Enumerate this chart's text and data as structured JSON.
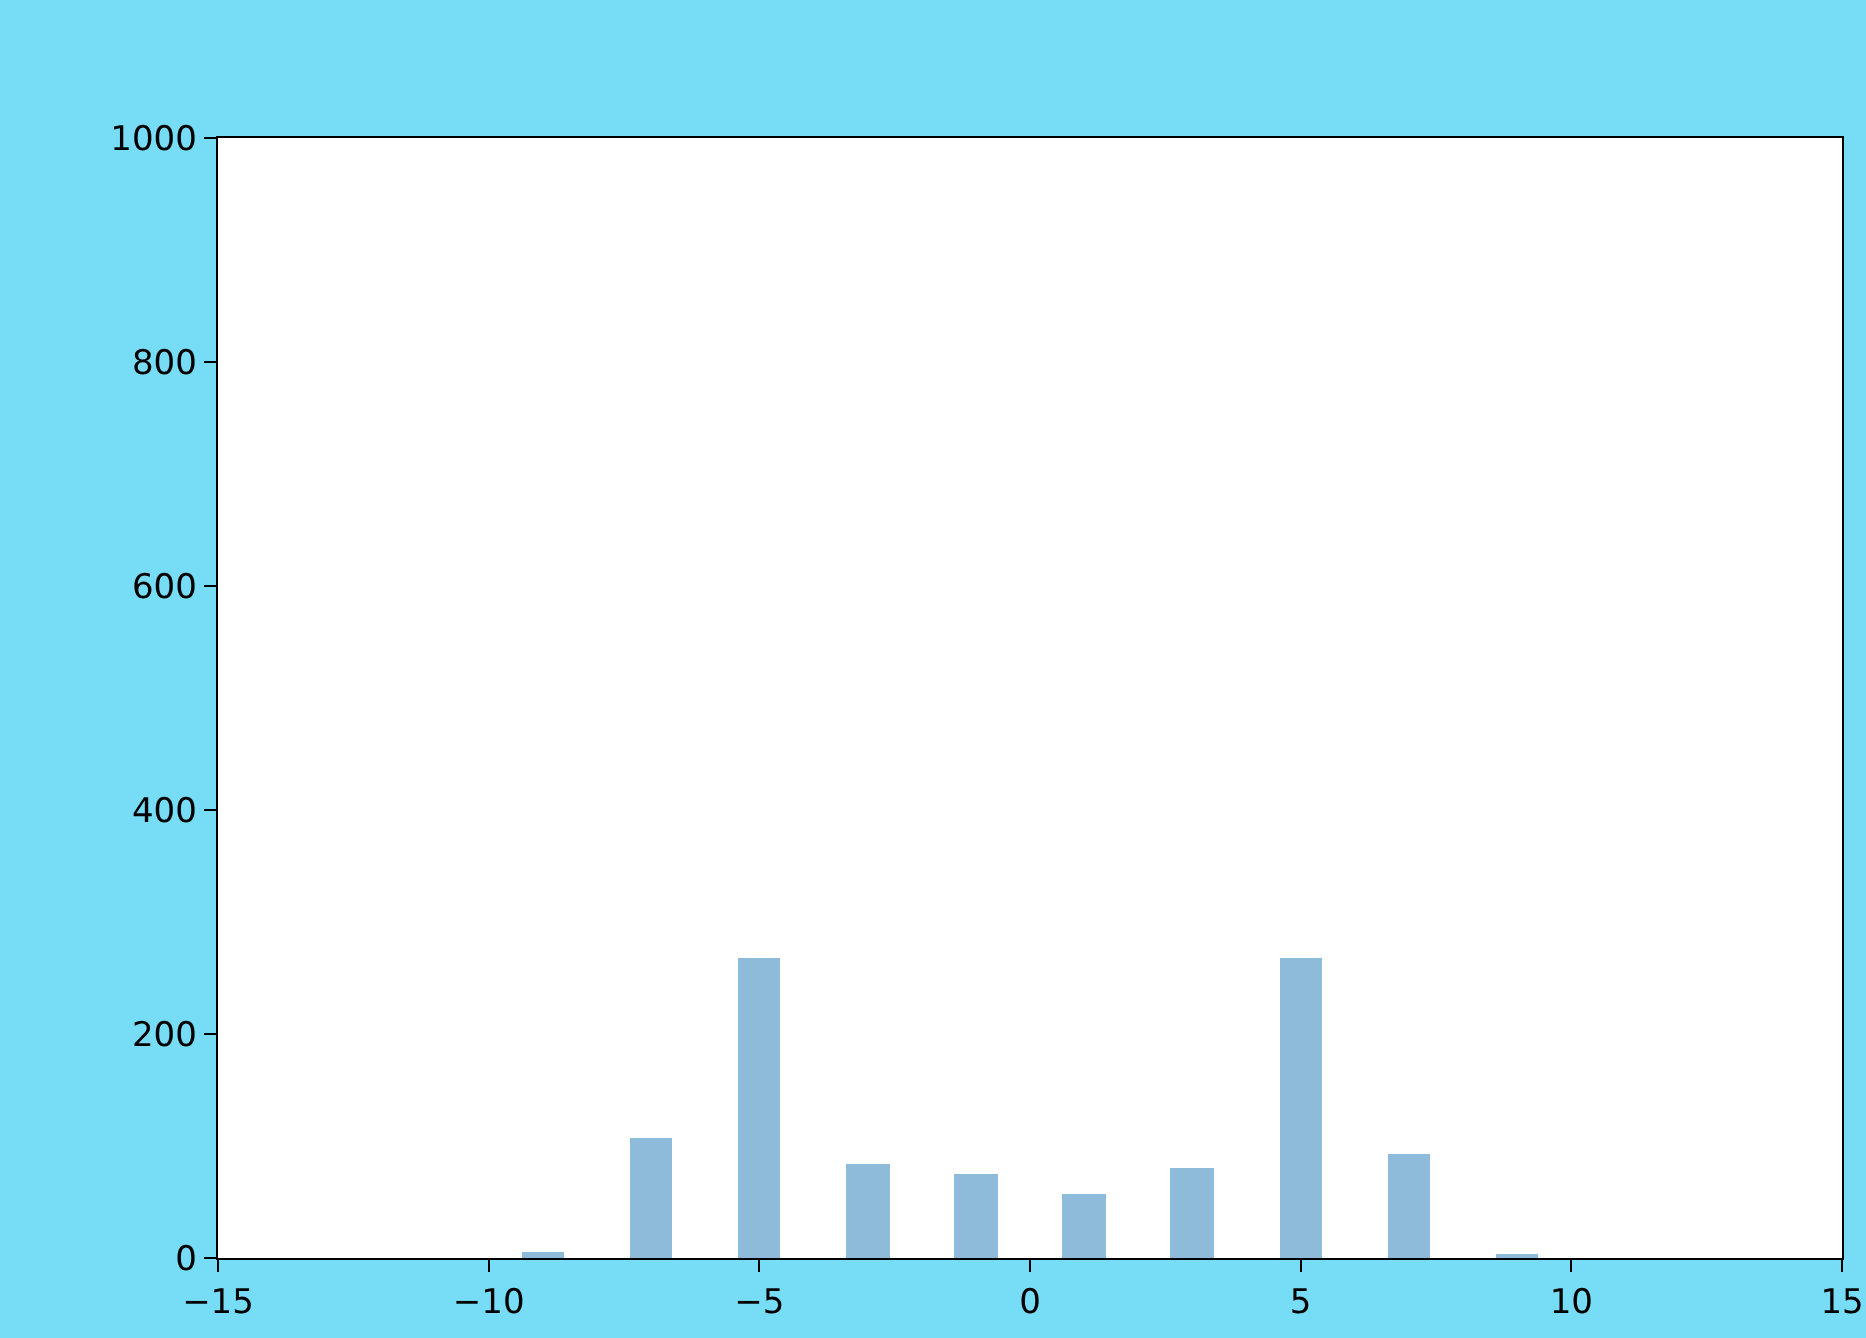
{
  "chart_data": {
    "type": "histogram",
    "bins": [
      -10,
      -8,
      -6,
      -4,
      -2,
      0,
      2,
      4,
      6,
      8,
      10
    ],
    "values": [
      5,
      107,
      268,
      84,
      75,
      57,
      80,
      268,
      93,
      4
    ],
    "color": "#8fbbdb",
    "xlim": [
      -15,
      15
    ],
    "xticks": [
      {
        "value": -15,
        "label": "−15"
      },
      {
        "value": -10,
        "label": "−10"
      },
      {
        "value": -5,
        "label": "−5"
      },
      0,
      5,
      10,
      15
    ],
    "ylim": [
      0,
      1000
    ],
    "yticks": [
      0,
      200,
      400,
      600,
      800,
      1000
    ],
    "grid": false
  }
}
